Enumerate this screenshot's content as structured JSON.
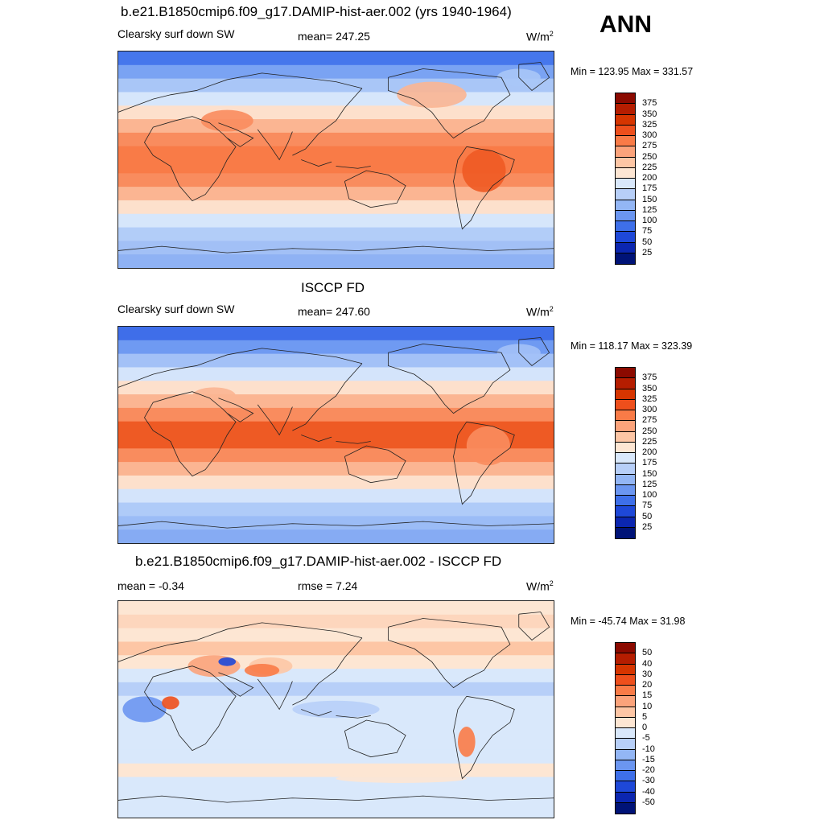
{
  "season": "ANN",
  "panels": [
    {
      "title": "b.e21.B1850cmip6.f09_g17.DAMIP-hist-aer.002 (yrs 1940-1964)",
      "variable": "Clearsky surf down SW",
      "stat_text": "mean= 247.25",
      "stat2_text": "",
      "units_base": "W/m",
      "units_exp": "2",
      "minmax": "Min = 123.95 Max = 331.57",
      "colorbar": {
        "labels": [
          "375",
          "350",
          "325",
          "300",
          "275",
          "250",
          "225",
          "200",
          "175",
          "150",
          "125",
          "100",
          "75",
          "50",
          "25"
        ],
        "colors": [
          "#8b0a00",
          "#b51d00",
          "#d63500",
          "#ee4f1c",
          "#f97b47",
          "#fba37b",
          "#fdc6a5",
          "#fde6d3",
          "#d9e8fb",
          "#b7cff8",
          "#93b6f5",
          "#6b96f1",
          "#3e6fe9",
          "#1e48d8",
          "#0b26b0",
          "#001377"
        ]
      },
      "bands": [
        "#4677ec",
        "#7aa3f3",
        "#a9c6f7",
        "#d6e6fb",
        "#fde0cc",
        "#fbb592",
        "#f98c5e",
        "#f97b47",
        "#f97b47",
        "#f98c5e",
        "#fbb592",
        "#fde0cc",
        "#d6e6fb",
        "#b2cdf8",
        "#a2c0f6",
        "#8fb2f4"
      ]
    },
    {
      "title": "ISCCP FD",
      "variable": "Clearsky surf down SW",
      "stat_text": "mean= 247.60",
      "stat2_text": "",
      "units_base": "W/m",
      "units_exp": "2",
      "minmax": "Min = 118.17 Max = 323.39",
      "colorbar": {
        "labels": [
          "375",
          "350",
          "325",
          "300",
          "275",
          "250",
          "225",
          "200",
          "175",
          "150",
          "125",
          "100",
          "75",
          "50",
          "25"
        ],
        "colors": [
          "#8b0a00",
          "#b51d00",
          "#d63500",
          "#ee4f1c",
          "#f97b47",
          "#fba37b",
          "#fdc6a5",
          "#fde6d3",
          "#d9e8fb",
          "#b7cff8",
          "#93b6f5",
          "#6b96f1",
          "#3e6fe9",
          "#1e48d8",
          "#0b26b0",
          "#001377"
        ]
      },
      "bands": [
        "#3f6ee9",
        "#6f9af2",
        "#a3c1f7",
        "#d4e4fb",
        "#fde0cc",
        "#fbb592",
        "#f98c5e",
        "#ee5a24",
        "#ee5a24",
        "#f98c5e",
        "#fbb592",
        "#fde0cc",
        "#d4e4fb",
        "#afcbf8",
        "#9bbcf6",
        "#86abf3"
      ]
    },
    {
      "title": "b.e21.B1850cmip6.f09_g17.DAMIP-hist-aer.002 - ISCCP FD",
      "variable": "mean =  -0.34",
      "stat_text": "rmse =   7.24",
      "stat2_text": "",
      "units_base": "W/m",
      "units_exp": "2",
      "minmax": "Min = -45.74 Max =  31.98",
      "colorbar": {
        "labels": [
          "50",
          "40",
          "30",
          "20",
          "15",
          "10",
          "5",
          "0",
          "-5",
          "-10",
          "-15",
          "-20",
          "-30",
          "-40",
          "-50"
        ],
        "colors": [
          "#8b0a00",
          "#b51d00",
          "#d63500",
          "#ee4f1c",
          "#f97b47",
          "#fba37b",
          "#fdc6a5",
          "#fde6d3",
          "#d9e8fb",
          "#b7cff8",
          "#93b6f5",
          "#6b96f1",
          "#3e6fe9",
          "#1e48d8",
          "#0b26b0",
          "#001377"
        ]
      },
      "bands": [
        "#fde6d3",
        "#fdd6bd",
        "#fde6d3",
        "#fdc6a5",
        "#fde6d3",
        "#d9e8fb",
        "#b7cff8",
        "#d9e8fb",
        "#d9e8fb",
        "#d9e8fb",
        "#d9e8fb",
        "#d9e8fb",
        "#fde6d3",
        "#d9e8fb",
        "#d9e8fb",
        "#d9e8fb"
      ]
    }
  ]
}
